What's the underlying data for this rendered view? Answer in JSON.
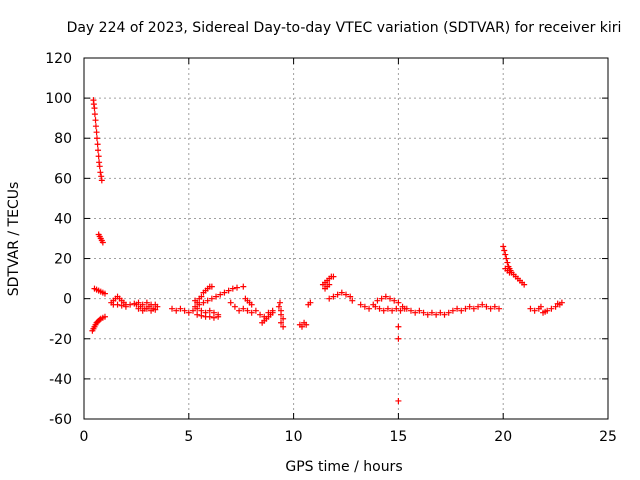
{
  "chart_data": {
    "type": "scatter",
    "title": "Day 224 of 2023, Sidereal Day-to-day VTEC variation (SDTVAR) for receiver kiri",
    "xlabel": "GPS time / hours",
    "ylabel": "SDTVAR / TECUs",
    "xlim": [
      0,
      25
    ],
    "ylim": [
      -60,
      120
    ],
    "xticks": [
      0,
      5,
      10,
      15,
      20,
      25
    ],
    "yticks": [
      -60,
      -40,
      -20,
      0,
      20,
      40,
      60,
      80,
      100,
      120
    ],
    "grid": true,
    "marker": "+",
    "color": "#ff0000",
    "series": [
      {
        "name": "SDTVAR",
        "points": [
          [
            0.45,
            99
          ],
          [
            0.47,
            97
          ],
          [
            0.5,
            95
          ],
          [
            0.52,
            92
          ],
          [
            0.55,
            89
          ],
          [
            0.57,
            86
          ],
          [
            0.6,
            83
          ],
          [
            0.62,
            80
          ],
          [
            0.65,
            77
          ],
          [
            0.67,
            74
          ],
          [
            0.7,
            71
          ],
          [
            0.72,
            68
          ],
          [
            0.75,
            66
          ],
          [
            0.78,
            63
          ],
          [
            0.82,
            61
          ],
          [
            0.85,
            59
          ],
          [
            0.7,
            32
          ],
          [
            0.75,
            31
          ],
          [
            0.8,
            30
          ],
          [
            0.85,
            29
          ],
          [
            0.9,
            28
          ],
          [
            0.5,
            5
          ],
          [
            0.6,
            4.5
          ],
          [
            0.7,
            4
          ],
          [
            0.8,
            3.5
          ],
          [
            0.9,
            3
          ],
          [
            1.0,
            2.5
          ],
          [
            0.4,
            -16
          ],
          [
            0.45,
            -15
          ],
          [
            0.5,
            -14
          ],
          [
            0.55,
            -13
          ],
          [
            0.6,
            -12
          ],
          [
            0.65,
            -11.5
          ],
          [
            0.7,
            -11
          ],
          [
            0.75,
            -10.5
          ],
          [
            0.8,
            -10
          ],
          [
            0.9,
            -9.5
          ],
          [
            1.0,
            -9
          ],
          [
            1.3,
            -2
          ],
          [
            1.4,
            -1
          ],
          [
            1.5,
            0
          ],
          [
            1.6,
            1
          ],
          [
            1.7,
            0
          ],
          [
            1.8,
            -1
          ],
          [
            1.9,
            -2
          ],
          [
            2.0,
            -3
          ],
          [
            1.4,
            -3
          ],
          [
            1.6,
            -3
          ],
          [
            1.8,
            -3.5
          ],
          [
            2.0,
            -4
          ],
          [
            2.2,
            -3
          ],
          [
            2.4,
            -2.5
          ],
          [
            2.5,
            -3
          ],
          [
            2.6,
            -2
          ],
          [
            2.7,
            -4
          ],
          [
            2.8,
            -3
          ],
          [
            2.9,
            -5
          ],
          [
            3.0,
            -2
          ],
          [
            3.1,
            -4
          ],
          [
            3.2,
            -3
          ],
          [
            3.3,
            -5
          ],
          [
            3.4,
            -3
          ],
          [
            2.6,
            -5
          ],
          [
            2.8,
            -6
          ],
          [
            3.0,
            -5
          ],
          [
            3.2,
            -6
          ],
          [
            3.4,
            -5.5
          ],
          [
            3.5,
            -4
          ],
          [
            4.2,
            -5
          ],
          [
            4.4,
            -6
          ],
          [
            4.6,
            -5
          ],
          [
            4.8,
            -6
          ],
          [
            5.0,
            -7
          ],
          [
            5.2,
            -6
          ],
          [
            5.4,
            -5
          ],
          [
            5.6,
            -6
          ],
          [
            5.8,
            -7
          ],
          [
            6.0,
            -6
          ],
          [
            6.2,
            -7
          ],
          [
            6.4,
            -8
          ],
          [
            5.3,
            -1
          ],
          [
            5.4,
            -2
          ],
          [
            5.5,
            0
          ],
          [
            5.6,
            1
          ],
          [
            5.7,
            3
          ],
          [
            5.8,
            4
          ],
          [
            5.9,
            5
          ],
          [
            6.0,
            6
          ],
          [
            6.1,
            6
          ],
          [
            5.3,
            -4
          ],
          [
            5.5,
            -3
          ],
          [
            5.7,
            -2
          ],
          [
            5.9,
            -1
          ],
          [
            6.1,
            0
          ],
          [
            6.3,
            1
          ],
          [
            6.5,
            2
          ],
          [
            6.7,
            3
          ],
          [
            6.9,
            4
          ],
          [
            7.1,
            5
          ],
          [
            7.3,
            5.5
          ],
          [
            5.4,
            -8
          ],
          [
            5.6,
            -8.5
          ],
          [
            5.8,
            -9
          ],
          [
            6.0,
            -9
          ],
          [
            6.2,
            -9.5
          ],
          [
            6.4,
            -9
          ],
          [
            7.0,
            -2
          ],
          [
            7.2,
            -4
          ],
          [
            7.4,
            -6
          ],
          [
            7.6,
            -5
          ],
          [
            7.8,
            -6
          ],
          [
            8.0,
            -7
          ],
          [
            8.2,
            -6
          ],
          [
            8.4,
            -8
          ],
          [
            8.6,
            -9
          ],
          [
            8.8,
            -7
          ],
          [
            9.0,
            -6
          ],
          [
            7.6,
            6
          ],
          [
            7.7,
            0
          ],
          [
            7.8,
            -1
          ],
          [
            7.9,
            -2
          ],
          [
            8.0,
            -3
          ],
          [
            8.5,
            -12
          ],
          [
            8.6,
            -11
          ],
          [
            8.7,
            -10
          ],
          [
            8.8,
            -9
          ],
          [
            8.9,
            -8
          ],
          [
            9.0,
            -7
          ],
          [
            9.3,
            -4
          ],
          [
            9.4,
            -6
          ],
          [
            9.4,
            -8
          ],
          [
            9.5,
            -10
          ],
          [
            9.4,
            -12
          ],
          [
            9.5,
            -14
          ],
          [
            9.35,
            -2
          ],
          [
            10.3,
            -13
          ],
          [
            10.4,
            -14
          ],
          [
            10.5,
            -12
          ],
          [
            10.6,
            -13
          ],
          [
            10.7,
            -3
          ],
          [
            10.8,
            -2
          ],
          [
            11.4,
            7
          ],
          [
            11.5,
            8
          ],
          [
            11.6,
            9
          ],
          [
            11.7,
            10
          ],
          [
            11.8,
            11
          ],
          [
            11.9,
            11
          ],
          [
            11.5,
            5
          ],
          [
            11.6,
            6
          ],
          [
            11.7,
            7
          ],
          [
            11.7,
            0
          ],
          [
            11.9,
            1
          ],
          [
            12.1,
            2
          ],
          [
            12.3,
            3
          ],
          [
            12.5,
            2
          ],
          [
            12.7,
            1
          ],
          [
            12.8,
            -1
          ],
          [
            13.2,
            -3
          ],
          [
            13.4,
            -4
          ],
          [
            13.6,
            -5
          ],
          [
            13.8,
            -3
          ],
          [
            14.0,
            -1
          ],
          [
            14.2,
            0
          ],
          [
            14.4,
            1
          ],
          [
            14.6,
            0
          ],
          [
            14.8,
            -1
          ],
          [
            15.0,
            -2
          ],
          [
            13.9,
            -4
          ],
          [
            14.1,
            -5
          ],
          [
            14.3,
            -6
          ],
          [
            14.5,
            -5
          ],
          [
            14.7,
            -6
          ],
          [
            14.9,
            -5
          ],
          [
            15.1,
            -6
          ],
          [
            15.3,
            -5
          ],
          [
            15.0,
            -14
          ],
          [
            15.0,
            -20
          ],
          [
            15.0,
            -51
          ],
          [
            15.2,
            -4
          ],
          [
            15.4,
            -5
          ],
          [
            15.6,
            -6
          ],
          [
            15.8,
            -7
          ],
          [
            16.0,
            -6
          ],
          [
            16.2,
            -7
          ],
          [
            16.4,
            -8
          ],
          [
            16.6,
            -7
          ],
          [
            16.8,
            -8
          ],
          [
            17.0,
            -7
          ],
          [
            17.2,
            -8
          ],
          [
            17.4,
            -7
          ],
          [
            17.6,
            -6
          ],
          [
            17.8,
            -5
          ],
          [
            18.0,
            -6
          ],
          [
            18.2,
            -5
          ],
          [
            18.4,
            -4
          ],
          [
            18.6,
            -5
          ],
          [
            18.8,
            -4
          ],
          [
            19.0,
            -3
          ],
          [
            19.2,
            -4
          ],
          [
            19.4,
            -5
          ],
          [
            19.6,
            -4
          ],
          [
            19.8,
            -5
          ],
          [
            20.0,
            26
          ],
          [
            20.05,
            24
          ],
          [
            20.1,
            22
          ],
          [
            20.15,
            20
          ],
          [
            20.2,
            18
          ],
          [
            20.25,
            16
          ],
          [
            20.3,
            15
          ],
          [
            20.35,
            14
          ],
          [
            20.4,
            13
          ],
          [
            20.5,
            12
          ],
          [
            20.6,
            11
          ],
          [
            20.7,
            10
          ],
          [
            20.8,
            9
          ],
          [
            20.9,
            8
          ],
          [
            21.0,
            7
          ],
          [
            20.1,
            15
          ],
          [
            20.2,
            14
          ],
          [
            20.3,
            13
          ],
          [
            21.3,
            -5
          ],
          [
            21.5,
            -6
          ],
          [
            21.7,
            -5
          ],
          [
            21.9,
            -7
          ],
          [
            22.1,
            -6
          ],
          [
            22.3,
            -5
          ],
          [
            22.5,
            -4
          ],
          [
            22.7,
            -3
          ],
          [
            22.8,
            -2
          ],
          [
            21.8,
            -4
          ],
          [
            22.0,
            -6.5
          ],
          [
            22.6,
            -2.5
          ]
        ]
      }
    ]
  }
}
